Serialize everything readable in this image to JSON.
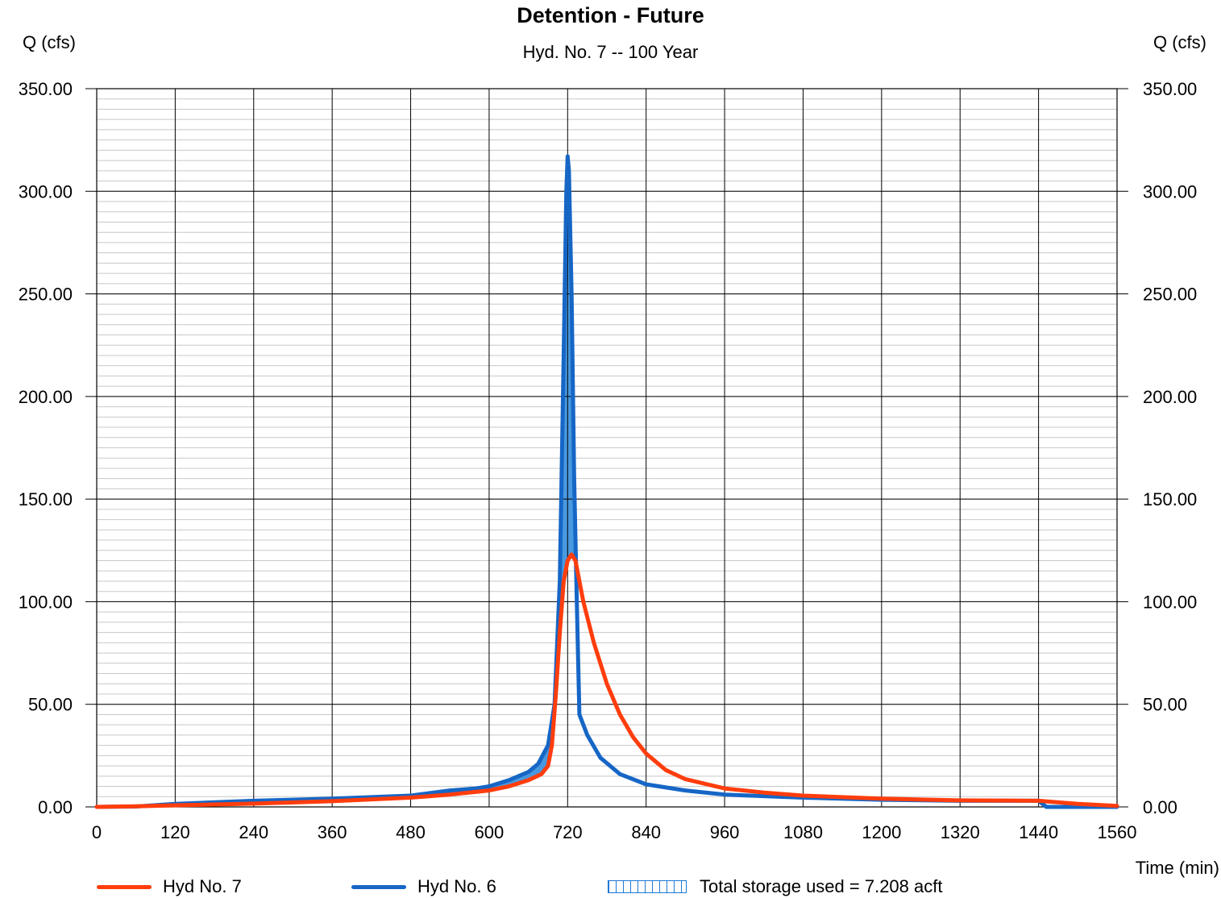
{
  "chart_data": {
    "type": "line",
    "title": "Detention - Future",
    "subtitle": "Hyd. No. 7 -- 100 Year",
    "ylabel_left": "Q (cfs)",
    "ylabel_right": "Q (cfs)",
    "xlabel": "Time (min)",
    "xlim": [
      0,
      1560
    ],
    "ylim": [
      0,
      350
    ],
    "x_ticks": [
      0,
      120,
      240,
      360,
      480,
      600,
      720,
      840,
      960,
      1080,
      1200,
      1320,
      1440,
      1560
    ],
    "y_ticks": [
      0,
      50,
      100,
      150,
      200,
      250,
      300,
      350
    ],
    "y_tick_labels": [
      "0.00",
      "50.00",
      "100.00",
      "150.00",
      "200.00",
      "250.00",
      "300.00",
      "350.00"
    ],
    "x_minor_step": 24,
    "y_minor_step": 5,
    "grid": true,
    "legend_position": "bottom",
    "series": [
      {
        "name": "Hyd No. 7",
        "color": "#ff3d0d",
        "points": [
          [
            0,
            0
          ],
          [
            60,
            0.3
          ],
          [
            120,
            0.8
          ],
          [
            240,
            1.6
          ],
          [
            360,
            2.8
          ],
          [
            480,
            4.5
          ],
          [
            540,
            6
          ],
          [
            600,
            8
          ],
          [
            630,
            10
          ],
          [
            660,
            13
          ],
          [
            680,
            16
          ],
          [
            690,
            20
          ],
          [
            696,
            30
          ],
          [
            702,
            55
          ],
          [
            708,
            85
          ],
          [
            714,
            110
          ],
          [
            720,
            120
          ],
          [
            726,
            123
          ],
          [
            732,
            120
          ],
          [
            744,
            100
          ],
          [
            760,
            80
          ],
          [
            780,
            60
          ],
          [
            800,
            45
          ],
          [
            820,
            34
          ],
          [
            840,
            26
          ],
          [
            870,
            18
          ],
          [
            900,
            13.5
          ],
          [
            960,
            9
          ],
          [
            1020,
            7
          ],
          [
            1080,
            5.5
          ],
          [
            1200,
            4
          ],
          [
            1320,
            3.2
          ],
          [
            1440,
            3
          ],
          [
            1500,
            1.5
          ],
          [
            1560,
            0.5
          ]
        ]
      },
      {
        "name": "Hyd No. 6",
        "color": "#1666c6",
        "points": [
          [
            0,
            0
          ],
          [
            60,
            0.2
          ],
          [
            120,
            1.5
          ],
          [
            240,
            3
          ],
          [
            360,
            4
          ],
          [
            480,
            5.5
          ],
          [
            540,
            8
          ],
          [
            580,
            9
          ],
          [
            600,
            10
          ],
          [
            630,
            13
          ],
          [
            660,
            17
          ],
          [
            675,
            21
          ],
          [
            690,
            30
          ],
          [
            700,
            50
          ],
          [
            708,
            110
          ],
          [
            714,
            220
          ],
          [
            718,
            300
          ],
          [
            720,
            317
          ],
          [
            722,
            310
          ],
          [
            726,
            250
          ],
          [
            730,
            160
          ],
          [
            734,
            100
          ],
          [
            738,
            45
          ],
          [
            750,
            35
          ],
          [
            770,
            24
          ],
          [
            800,
            16
          ],
          [
            840,
            11
          ],
          [
            900,
            8
          ],
          [
            960,
            6
          ],
          [
            1080,
            4.5
          ],
          [
            1200,
            3.5
          ],
          [
            1320,
            3
          ],
          [
            1440,
            3
          ],
          [
            1452,
            0
          ],
          [
            1560,
            0
          ]
        ]
      }
    ],
    "storage_fill_color": "#3f93de",
    "annotation": "Total storage used = 7.208 acft"
  }
}
